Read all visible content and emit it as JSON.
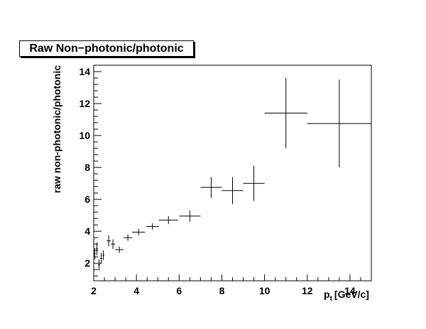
{
  "chart_data": {
    "type": "scatter",
    "title": "Raw Non−photonic/photonic",
    "xlabel": "p",
    "xlabel_subscript": "t",
    "xlabel_unit": "[GeV/c]",
    "ylabel": "raw non-photonic/photonic",
    "xlim": [
      2,
      15
    ],
    "ylim": [
      0.9,
      14.4
    ],
    "x_ticks": [
      "2",
      "4",
      "6",
      "8",
      "10",
      "12",
      "14"
    ],
    "y_ticks": [
      "2",
      "4",
      "6",
      "8",
      "10",
      "12",
      "14"
    ],
    "grid": false,
    "legend": "none",
    "points": [
      {
        "x": 2.05,
        "y": 2.6,
        "xerr": 0.05,
        "yerr": 0.35
      },
      {
        "x": 2.15,
        "y": 2.9,
        "xerr": 0.05,
        "yerr": 0.4
      },
      {
        "x": 2.25,
        "y": 1.9,
        "xerr": 0.05,
        "yerr": 0.35
      },
      {
        "x": 2.35,
        "y": 2.3,
        "xerr": 0.05,
        "yerr": 0.35
      },
      {
        "x": 2.45,
        "y": 2.5,
        "xerr": 0.05,
        "yerr": 0.3
      },
      {
        "x": 2.7,
        "y": 3.4,
        "xerr": 0.1,
        "yerr": 0.35
      },
      {
        "x": 2.9,
        "y": 3.2,
        "xerr": 0.1,
        "yerr": 0.3
      },
      {
        "x": 3.2,
        "y": 2.85,
        "xerr": 0.2,
        "yerr": 0.2
      },
      {
        "x": 3.6,
        "y": 3.6,
        "xerr": 0.2,
        "yerr": 0.2
      },
      {
        "x": 4.1,
        "y": 3.95,
        "xerr": 0.3,
        "yerr": 0.2
      },
      {
        "x": 4.75,
        "y": 4.3,
        "xerr": 0.3,
        "yerr": 0.2
      },
      {
        "x": 5.5,
        "y": 4.7,
        "xerr": 0.45,
        "yerr": 0.25
      },
      {
        "x": 6.5,
        "y": 4.95,
        "xerr": 0.5,
        "yerr": 0.35
      },
      {
        "x": 7.5,
        "y": 6.75,
        "xerr": 0.5,
        "yerr": 0.65
      },
      {
        "x": 8.5,
        "y": 6.55,
        "xerr": 0.5,
        "yerr": 0.85
      },
      {
        "x": 9.5,
        "y": 7.0,
        "xerr": 0.5,
        "yerr": 1.1
      },
      {
        "x": 11.0,
        "y": 11.4,
        "xerr": 1.0,
        "yerr": 2.2
      },
      {
        "x": 13.5,
        "y": 10.75,
        "xerr": 1.5,
        "yerr": 2.75
      }
    ]
  }
}
